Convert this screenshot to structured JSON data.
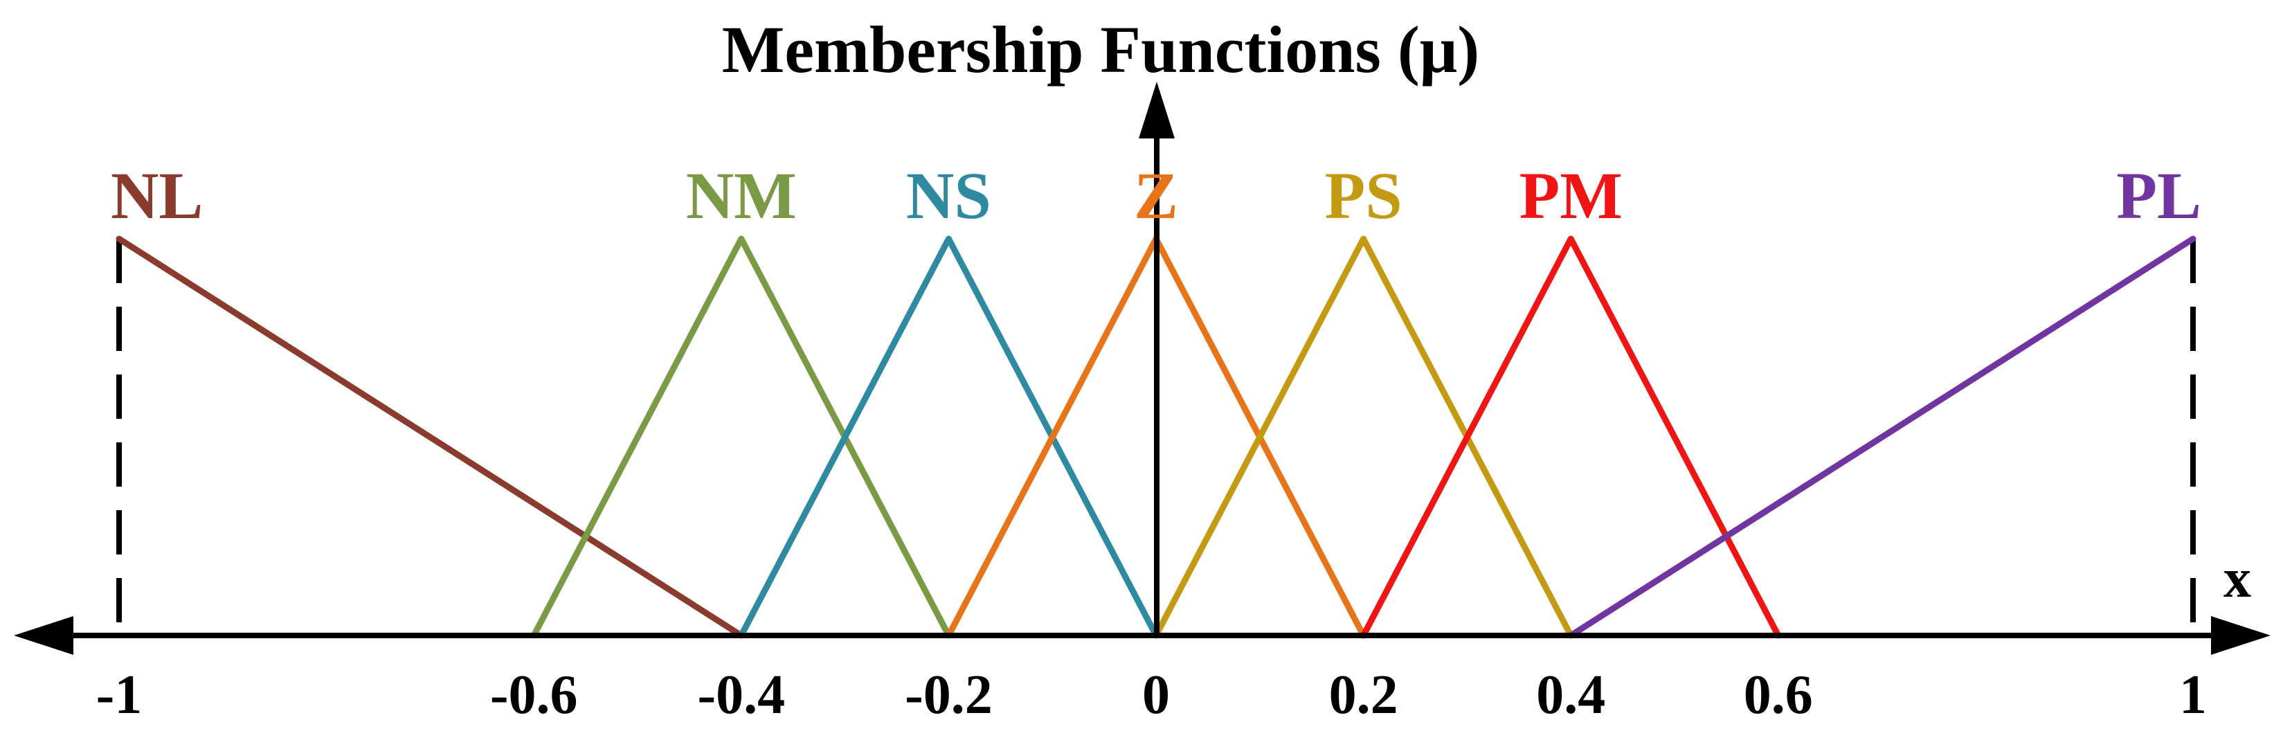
{
  "chart_data": {
    "type": "line",
    "title": "Membership Functions (μ)",
    "xlabel": "x",
    "ylabel": "",
    "xlim": [
      -1,
      1
    ],
    "ylim": [
      0,
      1
    ],
    "x_ticks": [
      -1,
      -0.6,
      -0.4,
      -0.2,
      0,
      0.2,
      0.4,
      0.6,
      1
    ],
    "x_tick_labels": [
      "-1",
      "-0.6",
      "-0.4",
      "-0.2",
      "0",
      "0.2",
      "0.4",
      "0.6",
      "1"
    ],
    "boundary_lines": [
      -1,
      1
    ],
    "series": [
      {
        "name": "NL",
        "color": "#8B3A2E",
        "x": [
          -1,
          -0.4
        ],
        "y": [
          1,
          0
        ]
      },
      {
        "name": "NM",
        "color": "#7A9A45",
        "x": [
          -0.6,
          -0.4,
          -0.2
        ],
        "y": [
          0,
          1,
          0
        ]
      },
      {
        "name": "NS",
        "color": "#2E8AA0",
        "x": [
          -0.4,
          -0.2,
          0
        ],
        "y": [
          0,
          1,
          0
        ]
      },
      {
        "name": "Z",
        "color": "#E8741A",
        "x": [
          -0.2,
          0,
          0.2
        ],
        "y": [
          0,
          1,
          0
        ]
      },
      {
        "name": "PS",
        "color": "#C49A12",
        "x": [
          0,
          0.2,
          0.4
        ],
        "y": [
          0,
          1,
          0
        ]
      },
      {
        "name": "PM",
        "color": "#F01414",
        "x": [
          0.2,
          0.4,
          0.6
        ],
        "y": [
          0,
          1,
          0
        ]
      },
      {
        "name": "PL",
        "color": "#7035A0",
        "x": [
          0.4,
          1
        ],
        "y": [
          0,
          1
        ]
      }
    ]
  }
}
